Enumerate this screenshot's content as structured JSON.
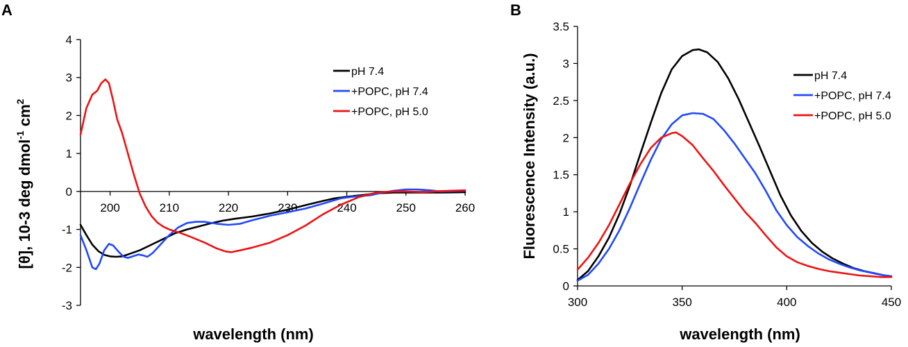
{
  "chart_data": [
    {
      "panel_label": "A",
      "type": "line",
      "xlabel": "wavelength (nm)",
      "ylabel_main": "[θ], 10-3 deg dmol",
      "ylabel_sup1": "-1",
      "ylabel_mid": " cm",
      "ylabel_sup2": "2",
      "xlim": [
        195,
        260
      ],
      "ylim": [
        -3,
        4
      ],
      "x_ticks": [
        200,
        210,
        220,
        230,
        240,
        250,
        260
      ],
      "y_ticks": [
        4,
        3,
        2,
        1,
        0,
        -1,
        -2,
        -3
      ],
      "legend": "upper-right",
      "series": [
        {
          "name": "pH 7.4",
          "color": "#000000",
          "points": [
            [
              195,
              -0.88
            ],
            [
              196,
              -1.15
            ],
            [
              197,
              -1.4
            ],
            [
              198,
              -1.57
            ],
            [
              199,
              -1.67
            ],
            [
              200,
              -1.71
            ],
            [
              201,
              -1.72
            ],
            [
              202,
              -1.71
            ],
            [
              203,
              -1.66
            ],
            [
              205,
              -1.55
            ],
            [
              207,
              -1.4
            ],
            [
              209,
              -1.25
            ],
            [
              211,
              -1.1
            ],
            [
              213,
              -1.0
            ],
            [
              215,
              -0.92
            ],
            [
              217,
              -0.84
            ],
            [
              219,
              -0.77
            ],
            [
              221,
              -0.72
            ],
            [
              224,
              -0.66
            ],
            [
              227,
              -0.58
            ],
            [
              230,
              -0.48
            ],
            [
              233,
              -0.36
            ],
            [
              236,
              -0.25
            ],
            [
              238,
              -0.18
            ],
            [
              240,
              -0.14
            ],
            [
              243,
              -0.09
            ],
            [
              245,
              -0.05
            ],
            [
              248,
              -0.03
            ],
            [
              250,
              -0.03
            ],
            [
              253,
              -0.03
            ],
            [
              256,
              -0.03
            ],
            [
              260,
              -0.02
            ]
          ]
        },
        {
          "name": "+POPC, pH 7.4",
          "color": "#1f48ff",
          "points": [
            [
              195,
              -1.15
            ],
            [
              196,
              -1.55
            ],
            [
              197,
              -2.0
            ],
            [
              197.6,
              -2.05
            ],
            [
              198.2,
              -1.9
            ],
            [
              199,
              -1.55
            ],
            [
              199.8,
              -1.38
            ],
            [
              200.5,
              -1.42
            ],
            [
              201.5,
              -1.6
            ],
            [
              202.3,
              -1.72
            ],
            [
              203,
              -1.75
            ],
            [
              204,
              -1.7
            ],
            [
              204.8,
              -1.66
            ],
            [
              205.5,
              -1.68
            ],
            [
              206.3,
              -1.72
            ],
            [
              207.2,
              -1.62
            ],
            [
              208.5,
              -1.4
            ],
            [
              210,
              -1.15
            ],
            [
              211.5,
              -0.95
            ],
            [
              213,
              -0.83
            ],
            [
              214.5,
              -0.8
            ],
            [
              216,
              -0.8
            ],
            [
              218,
              -0.85
            ],
            [
              220,
              -0.88
            ],
            [
              222,
              -0.85
            ],
            [
              224,
              -0.76
            ],
            [
              227,
              -0.64
            ],
            [
              230,
              -0.55
            ],
            [
              233,
              -0.45
            ],
            [
              236,
              -0.32
            ],
            [
              239,
              -0.18
            ],
            [
              241,
              -0.14
            ],
            [
              244,
              -0.1
            ],
            [
              246,
              -0.03
            ],
            [
              248,
              0.02
            ],
            [
              250,
              0.05
            ],
            [
              252,
              0.05
            ],
            [
              254,
              0.03
            ],
            [
              256,
              0.0
            ],
            [
              258,
              0.01
            ],
            [
              260,
              0.02
            ]
          ]
        },
        {
          "name": "+POPC, pH 5.0",
          "color": "#ee1111",
          "points": [
            [
              195,
              1.5
            ],
            [
              196,
              2.2
            ],
            [
              197,
              2.55
            ],
            [
              197.8,
              2.65
            ],
            [
              198.5,
              2.85
            ],
            [
              199.2,
              2.95
            ],
            [
              199.8,
              2.85
            ],
            [
              200.5,
              2.4
            ],
            [
              201.2,
              1.9
            ],
            [
              202,
              1.55
            ],
            [
              203,
              1.0
            ],
            [
              204,
              0.45
            ],
            [
              205,
              -0.05
            ],
            [
              206,
              -0.4
            ],
            [
              207,
              -0.65
            ],
            [
              208,
              -0.82
            ],
            [
              209,
              -0.93
            ],
            [
              210,
              -1.0
            ],
            [
              212,
              -1.1
            ],
            [
              214,
              -1.22
            ],
            [
              216,
              -1.35
            ],
            [
              218,
              -1.5
            ],
            [
              219.5,
              -1.58
            ],
            [
              220.5,
              -1.6
            ],
            [
              222,
              -1.55
            ],
            [
              224,
              -1.48
            ],
            [
              227,
              -1.35
            ],
            [
              230,
              -1.15
            ],
            [
              233,
              -0.9
            ],
            [
              236,
              -0.6
            ],
            [
              239,
              -0.35
            ],
            [
              242,
              -0.15
            ],
            [
              245,
              -0.03
            ],
            [
              248,
              0.0
            ],
            [
              250,
              0.0
            ],
            [
              253,
              -0.02
            ],
            [
              256,
              0.01
            ],
            [
              260,
              0.03
            ]
          ]
        }
      ]
    },
    {
      "panel_label": "B",
      "type": "line",
      "xlabel": "wavelength (nm)",
      "ylabel": "Fluorescence Intensity (a.u.)",
      "xlim": [
        300,
        450
      ],
      "ylim": [
        0,
        3.5
      ],
      "x_ticks": [
        300,
        350,
        400,
        450
      ],
      "y_ticks": [
        3.5,
        3,
        2.5,
        2,
        1.5,
        1,
        0.5,
        0
      ],
      "legend": "right",
      "series": [
        {
          "name": "pH 7.4",
          "color": "#000000",
          "points": [
            [
              300,
              0.08
            ],
            [
              305,
              0.2
            ],
            [
              310,
              0.4
            ],
            [
              315,
              0.65
            ],
            [
              320,
              0.97
            ],
            [
              325,
              1.35
            ],
            [
              330,
              1.78
            ],
            [
              335,
              2.2
            ],
            [
              340,
              2.6
            ],
            [
              345,
              2.92
            ],
            [
              350,
              3.1
            ],
            [
              355,
              3.18
            ],
            [
              358,
              3.19
            ],
            [
              362,
              3.15
            ],
            [
              367,
              3.02
            ],
            [
              372,
              2.8
            ],
            [
              377,
              2.52
            ],
            [
              382,
              2.2
            ],
            [
              387,
              1.88
            ],
            [
              392,
              1.55
            ],
            [
              397,
              1.22
            ],
            [
              402,
              0.95
            ],
            [
              407,
              0.74
            ],
            [
              412,
              0.58
            ],
            [
              417,
              0.46
            ],
            [
              422,
              0.37
            ],
            [
              427,
              0.3
            ],
            [
              432,
              0.24
            ],
            [
              437,
              0.2
            ],
            [
              442,
              0.17
            ],
            [
              447,
              0.14
            ],
            [
              450,
              0.13
            ]
          ]
        },
        {
          "name": "+POPC, pH 7.4",
          "color": "#1f48ff",
          "points": [
            [
              300,
              0.07
            ],
            [
              305,
              0.15
            ],
            [
              310,
              0.3
            ],
            [
              315,
              0.5
            ],
            [
              320,
              0.75
            ],
            [
              325,
              1.05
            ],
            [
              330,
              1.38
            ],
            [
              335,
              1.7
            ],
            [
              340,
              1.98
            ],
            [
              345,
              2.18
            ],
            [
              350,
              2.3
            ],
            [
              355,
              2.33
            ],
            [
              360,
              2.32
            ],
            [
              365,
              2.25
            ],
            [
              370,
              2.1
            ],
            [
              375,
              1.92
            ],
            [
              380,
              1.72
            ],
            [
              385,
              1.52
            ],
            [
              390,
              1.28
            ],
            [
              395,
              1.02
            ],
            [
              400,
              0.82
            ],
            [
              405,
              0.66
            ],
            [
              410,
              0.54
            ],
            [
              415,
              0.44
            ],
            [
              420,
              0.36
            ],
            [
              425,
              0.3
            ],
            [
              430,
              0.25
            ],
            [
              435,
              0.21
            ],
            [
              440,
              0.18
            ],
            [
              445,
              0.15
            ],
            [
              450,
              0.13
            ]
          ]
        },
        {
          "name": "+POPC, pH 5.0",
          "color": "#ee1111",
          "points": [
            [
              300,
              0.22
            ],
            [
              305,
              0.38
            ],
            [
              310,
              0.58
            ],
            [
              315,
              0.82
            ],
            [
              320,
              1.1
            ],
            [
              325,
              1.38
            ],
            [
              330,
              1.64
            ],
            [
              335,
              1.86
            ],
            [
              340,
              2.0
            ],
            [
              345,
              2.06
            ],
            [
              347,
              2.07
            ],
            [
              350,
              2.02
            ],
            [
              355,
              1.9
            ],
            [
              360,
              1.72
            ],
            [
              365,
              1.55
            ],
            [
              370,
              1.36
            ],
            [
              375,
              1.18
            ],
            [
              380,
              1.0
            ],
            [
              385,
              0.85
            ],
            [
              390,
              0.68
            ],
            [
              395,
              0.52
            ],
            [
              400,
              0.4
            ],
            [
              405,
              0.32
            ],
            [
              410,
              0.27
            ],
            [
              415,
              0.23
            ],
            [
              420,
              0.2
            ],
            [
              425,
              0.18
            ],
            [
              430,
              0.16
            ],
            [
              435,
              0.14
            ],
            [
              440,
              0.13
            ],
            [
              445,
              0.12
            ],
            [
              450,
              0.12
            ]
          ]
        }
      ]
    }
  ]
}
